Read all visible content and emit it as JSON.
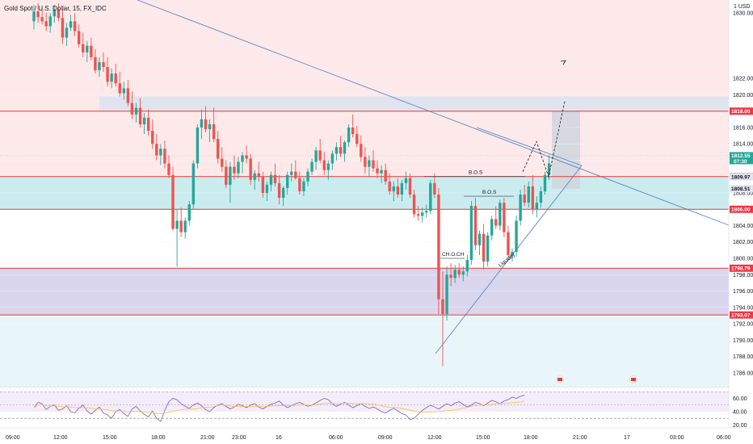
{
  "chart_data": {
    "type": "candlestick",
    "title": "Gold Spot / U.S. Dollar, 15, FX_IDC",
    "currency": "USD",
    "y_scale": "1",
    "ylim": [
      1784.2,
      1831.6
    ],
    "y_ticks": [
      1786,
      1788,
      1790,
      1792,
      1794,
      1796,
      1798,
      1800,
      1802,
      1804,
      1806,
      1808,
      1810,
      1812,
      1814,
      1816,
      1818,
      1820,
      1822,
      1830
    ],
    "price_tags": [
      {
        "value": "1818.00",
        "price": 1818.0,
        "bg": "#f23645",
        "fg": "#ffffff"
      },
      {
        "value": "1812.55",
        "time": "07:30",
        "price": 1812.55,
        "bg": "#26a69a",
        "fg": "#ffffff"
      },
      {
        "value": "1810.00",
        "price": 1810.0,
        "bg": "#f23645",
        "fg": "#ffffff"
      },
      {
        "value": "1809.97",
        "price": 1809.97,
        "bg": "#e0e3eb",
        "fg": "#131722"
      },
      {
        "value": "1808.51",
        "price": 1808.51,
        "bg": "#e0e3eb",
        "fg": "#131722"
      },
      {
        "value": "1806.00",
        "price": 1806.0,
        "bg": "#f23645",
        "fg": "#ffffff"
      },
      {
        "value": "1798.79",
        "price": 1798.79,
        "bg": "#f23645",
        "fg": "#ffffff"
      },
      {
        "value": "1793.07",
        "price": 1793.07,
        "bg": "#f23645",
        "fg": "#ffffff"
      }
    ],
    "time_labels": [
      "09:00",
      "12:00",
      "15:00",
      "18:00",
      "21:00",
      "23:00",
      "16",
      "06:00",
      "09:00",
      "12:00",
      "15:00",
      "18:00",
      "21:00",
      "17",
      "03:00",
      "06:00"
    ],
    "zones": [
      {
        "name": "supply",
        "from": 1818.0,
        "to": 1819.8,
        "color": "#dde4ef"
      },
      {
        "name": "demand",
        "from": 1806.0,
        "to": 1810.0,
        "color": "#c7ebee"
      },
      {
        "name": "discount",
        "from": 1793.07,
        "to": 1798.79,
        "color": "#d8d4ec"
      }
    ],
    "levels": [
      1818.0,
      1810.0,
      1806.0,
      1798.79,
      1793.07
    ],
    "annotations": [
      {
        "text": "B.O.S",
        "price": 1810.0
      },
      {
        "text": "B.O.S",
        "price": 1807.6
      },
      {
        "text": "CH.O.CH",
        "price": 1800.0
      },
      {
        "text": "Liquidity"
      }
    ],
    "bull_color": "#26a69a",
    "bear_color": "#ef5350",
    "candles_ohlc": [
      [
        1829.0,
        1831.0,
        1828.0,
        1830.2
      ],
      [
        1830.2,
        1831.2,
        1828.8,
        1829.5
      ],
      [
        1829.5,
        1830.5,
        1828.6,
        1829.0
      ],
      [
        1829.0,
        1830.0,
        1827.8,
        1828.4
      ],
      [
        1828.4,
        1830.0,
        1827.6,
        1829.6
      ],
      [
        1829.6,
        1831.0,
        1828.8,
        1830.4
      ],
      [
        1830.4,
        1831.2,
        1829.0,
        1829.4
      ],
      [
        1829.4,
        1830.4,
        1826.2,
        1827.0
      ],
      [
        1827.0,
        1828.8,
        1826.0,
        1828.2
      ],
      [
        1828.2,
        1829.8,
        1827.8,
        1829.0
      ],
      [
        1829.0,
        1830.0,
        1827.2,
        1827.8
      ],
      [
        1827.8,
        1828.6,
        1825.8,
        1826.2
      ],
      [
        1826.2,
        1827.6,
        1824.6,
        1825.2
      ],
      [
        1825.2,
        1826.6,
        1824.0,
        1826.0
      ],
      [
        1826.0,
        1827.0,
        1824.2,
        1824.6
      ],
      [
        1824.6,
        1825.6,
        1822.6,
        1823.0
      ],
      [
        1823.0,
        1824.6,
        1822.2,
        1824.0
      ],
      [
        1824.0,
        1825.2,
        1822.8,
        1823.4
      ],
      [
        1823.4,
        1824.6,
        1821.0,
        1821.6
      ],
      [
        1821.6,
        1823.2,
        1820.8,
        1822.6
      ],
      [
        1822.6,
        1823.8,
        1821.0,
        1821.4
      ],
      [
        1821.4,
        1822.8,
        1819.8,
        1820.2
      ],
      [
        1820.2,
        1821.6,
        1819.4,
        1820.8
      ],
      [
        1820.8,
        1821.8,
        1818.6,
        1819.0
      ],
      [
        1819.0,
        1820.4,
        1817.0,
        1817.6
      ],
      [
        1817.6,
        1819.0,
        1816.6,
        1818.4
      ],
      [
        1818.4,
        1819.6,
        1816.0,
        1816.4
      ],
      [
        1816.4,
        1817.8,
        1815.2,
        1817.2
      ],
      [
        1817.2,
        1818.2,
        1815.0,
        1815.6
      ],
      [
        1815.6,
        1817.0,
        1813.4,
        1814.0
      ],
      [
        1814.0,
        1815.2,
        1812.0,
        1812.6
      ],
      [
        1812.6,
        1814.0,
        1811.4,
        1813.4
      ],
      [
        1813.4,
        1814.4,
        1811.0,
        1811.6
      ],
      [
        1811.6,
        1812.6,
        1809.8,
        1810.2
      ],
      [
        1810.2,
        1811.2,
        1803.4,
        1803.6
      ],
      [
        1803.6,
        1806.0,
        1799.0,
        1804.6
      ],
      [
        1804.6,
        1806.2,
        1802.6,
        1803.2
      ],
      [
        1803.2,
        1805.0,
        1802.4,
        1804.6
      ],
      [
        1804.6,
        1807.0,
        1804.0,
        1806.6
      ],
      [
        1806.6,
        1812.0,
        1806.0,
        1811.6
      ],
      [
        1811.6,
        1816.4,
        1811.0,
        1816.0
      ],
      [
        1816.0,
        1818.2,
        1814.6,
        1817.0
      ],
      [
        1817.0,
        1818.6,
        1815.4,
        1815.8
      ],
      [
        1815.8,
        1817.0,
        1814.2,
        1816.4
      ],
      [
        1816.4,
        1818.4,
        1814.2,
        1814.6
      ],
      [
        1814.6,
        1815.6,
        1811.6,
        1812.2
      ],
      [
        1812.2,
        1813.6,
        1810.6,
        1811.2
      ],
      [
        1811.2,
        1812.0,
        1808.6,
        1809.0
      ],
      [
        1809.0,
        1811.8,
        1806.8,
        1811.2
      ],
      [
        1811.2,
        1812.6,
        1809.6,
        1810.4
      ],
      [
        1810.4,
        1812.4,
        1809.8,
        1811.8
      ],
      [
        1811.8,
        1813.0,
        1810.4,
        1812.6
      ],
      [
        1812.6,
        1813.8,
        1811.6,
        1812.2
      ],
      [
        1812.2,
        1812.8,
        1809.0,
        1809.6
      ],
      [
        1809.6,
        1810.8,
        1808.4,
        1810.4
      ],
      [
        1810.4,
        1811.8,
        1809.4,
        1810.0
      ],
      [
        1810.0,
        1810.6,
        1807.4,
        1808.0
      ],
      [
        1808.0,
        1809.4,
        1807.0,
        1809.0
      ],
      [
        1809.0,
        1810.6,
        1808.2,
        1810.2
      ],
      [
        1810.2,
        1811.6,
        1808.8,
        1809.2
      ],
      [
        1809.2,
        1810.2,
        1806.6,
        1807.4
      ],
      [
        1807.4,
        1808.8,
        1806.4,
        1808.6
      ],
      [
        1808.6,
        1810.6,
        1807.8,
        1810.2
      ],
      [
        1810.2,
        1811.6,
        1809.4,
        1810.6
      ],
      [
        1810.6,
        1812.0,
        1809.6,
        1809.8
      ],
      [
        1809.8,
        1810.6,
        1807.8,
        1808.2
      ],
      [
        1808.2,
        1809.8,
        1807.6,
        1809.4
      ],
      [
        1809.4,
        1811.0,
        1808.8,
        1810.6
      ],
      [
        1810.6,
        1812.2,
        1810.2,
        1811.8
      ],
      [
        1811.8,
        1813.6,
        1810.8,
        1813.2
      ],
      [
        1813.2,
        1814.6,
        1811.6,
        1812.0
      ],
      [
        1812.0,
        1813.0,
        1810.2,
        1810.8
      ],
      [
        1810.8,
        1812.0,
        1809.6,
        1811.6
      ],
      [
        1811.6,
        1813.2,
        1810.8,
        1812.8
      ],
      [
        1812.8,
        1814.2,
        1812.0,
        1813.6
      ],
      [
        1813.6,
        1815.0,
        1812.4,
        1812.8
      ],
      [
        1812.8,
        1814.4,
        1811.8,
        1814.2
      ],
      [
        1814.2,
        1816.4,
        1813.6,
        1816.0
      ],
      [
        1816.0,
        1817.6,
        1814.8,
        1815.2
      ],
      [
        1815.2,
        1816.2,
        1813.6,
        1814.0
      ],
      [
        1814.0,
        1815.0,
        1811.8,
        1812.4
      ],
      [
        1812.4,
        1813.6,
        1810.4,
        1811.2
      ],
      [
        1811.2,
        1812.6,
        1810.0,
        1812.0
      ],
      [
        1812.0,
        1813.2,
        1810.6,
        1811.0
      ],
      [
        1811.0,
        1812.0,
        1809.8,
        1810.4
      ],
      [
        1810.4,
        1811.4,
        1809.2,
        1810.8
      ],
      [
        1810.8,
        1811.6,
        1809.0,
        1809.4
      ],
      [
        1809.4,
        1810.4,
        1807.8,
        1808.2
      ],
      [
        1808.2,
        1809.4,
        1807.0,
        1808.8
      ],
      [
        1808.8,
        1809.8,
        1807.4,
        1807.8
      ],
      [
        1807.8,
        1809.6,
        1807.0,
        1809.2
      ],
      [
        1809.2,
        1810.6,
        1808.4,
        1809.8
      ],
      [
        1809.8,
        1810.4,
        1807.4,
        1807.8
      ],
      [
        1807.8,
        1808.4,
        1805.0,
        1805.4
      ],
      [
        1805.4,
        1806.4,
        1804.6,
        1805.2
      ],
      [
        1805.2,
        1806.2,
        1804.4,
        1805.6
      ],
      [
        1805.6,
        1806.6,
        1805.0,
        1805.8
      ],
      [
        1805.8,
        1809.6,
        1805.4,
        1809.2
      ],
      [
        1809.2,
        1810.4,
        1807.4,
        1807.8
      ],
      [
        1807.8,
        1808.6,
        1793.2,
        1795.0
      ],
      [
        1795.0,
        1798.4,
        1786.8,
        1793.2
      ],
      [
        1793.2,
        1799.0,
        1792.4,
        1798.0
      ],
      [
        1798.0,
        1799.4,
        1796.6,
        1797.6
      ],
      [
        1797.6,
        1799.2,
        1797.0,
        1798.6
      ],
      [
        1798.6,
        1799.4,
        1797.6,
        1798.0
      ],
      [
        1798.0,
        1799.0,
        1797.2,
        1798.4
      ],
      [
        1798.4,
        1800.4,
        1797.8,
        1799.8
      ],
      [
        1799.8,
        1807.0,
        1799.2,
        1806.4
      ],
      [
        1806.4,
        1807.4,
        1801.0,
        1801.6
      ],
      [
        1801.6,
        1803.4,
        1800.4,
        1803.0
      ],
      [
        1803.0,
        1804.2,
        1798.6,
        1799.6
      ],
      [
        1799.6,
        1803.2,
        1799.0,
        1802.8
      ],
      [
        1802.8,
        1805.2,
        1802.2,
        1804.8
      ],
      [
        1804.8,
        1806.4,
        1803.6,
        1804.0
      ],
      [
        1804.0,
        1807.2,
        1803.4,
        1806.8
      ],
      [
        1806.8,
        1807.4,
        1802.6,
        1803.2
      ],
      [
        1803.2,
        1804.0,
        1799.8,
        1800.4
      ],
      [
        1800.4,
        1801.2,
        1799.6,
        1800.8
      ],
      [
        1800.8,
        1805.2,
        1800.2,
        1804.6
      ],
      [
        1804.6,
        1808.4,
        1804.0,
        1807.8
      ],
      [
        1807.8,
        1809.0,
        1806.4,
        1806.8
      ],
      [
        1806.8,
        1809.4,
        1806.2,
        1808.8
      ],
      [
        1808.8,
        1810.2,
        1805.4,
        1806.0
      ],
      [
        1806.0,
        1807.6,
        1805.0,
        1806.8
      ],
      [
        1806.8,
        1808.8,
        1806.2,
        1808.2
      ],
      [
        1808.2,
        1810.6,
        1807.8,
        1810.2
      ],
      [
        1810.2,
        1812.6,
        1809.6,
        1811.6
      ]
    ],
    "projection": [
      [
        1810.6,
        "start"
      ],
      [
        1814.3,
        "peak"
      ],
      [
        1809.97,
        "retest"
      ],
      [
        1819.2,
        "target"
      ]
    ],
    "rsi": {
      "ylim": [
        18,
        74
      ],
      "ticks": [
        20,
        40,
        60
      ],
      "band": [
        40,
        70
      ],
      "values": [
        46,
        54,
        52,
        43,
        48,
        50,
        42,
        44,
        49,
        40,
        38,
        45,
        50,
        41,
        36,
        42,
        47,
        38,
        35,
        30,
        40,
        43,
        37,
        33,
        44,
        48,
        41,
        36,
        32,
        41,
        30,
        25,
        42,
        55,
        60,
        58,
        52,
        48,
        45,
        50,
        53,
        49,
        43,
        40,
        46,
        50,
        52,
        48,
        44,
        47,
        51,
        49,
        46,
        50,
        52,
        47,
        44,
        48,
        51,
        53,
        56,
        50,
        46,
        49,
        52,
        54,
        51,
        48,
        50,
        53,
        57,
        60,
        58,
        52,
        48,
        51,
        54,
        50,
        46,
        49,
        52,
        48,
        45,
        47,
        44,
        40,
        38,
        42,
        45,
        41,
        37,
        35,
        28,
        30,
        36,
        42,
        46,
        50,
        47,
        44,
        48,
        52,
        49,
        53,
        55,
        51,
        47,
        50,
        54,
        52,
        49,
        53,
        57,
        55,
        52,
        56,
        58,
        62,
        60,
        63,
        65
      ]
    }
  }
}
